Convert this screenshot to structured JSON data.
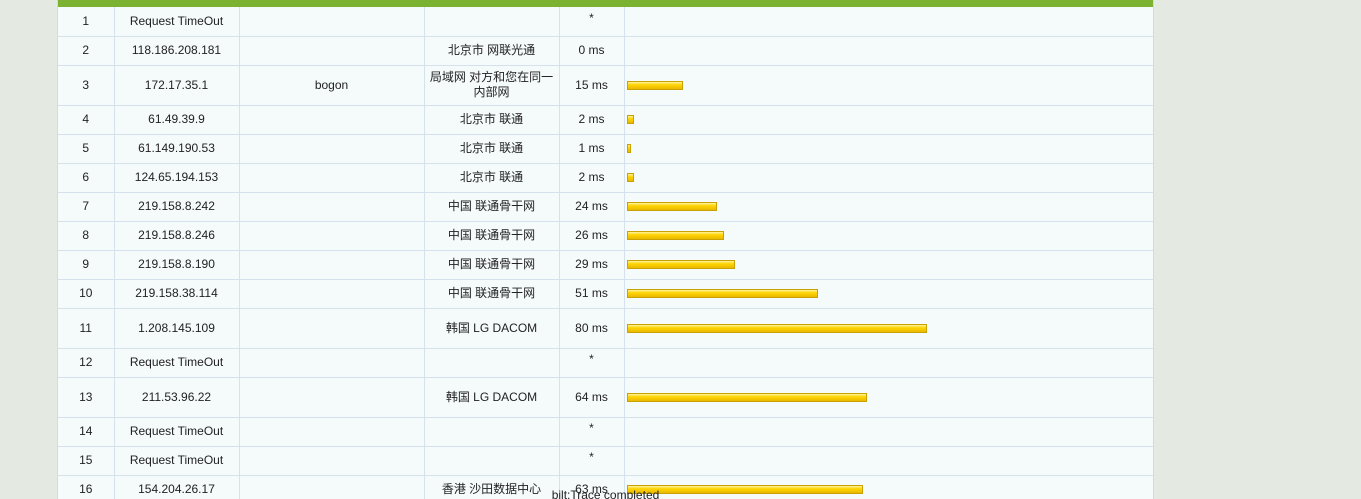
{
  "rows": [
    {
      "hop": "1",
      "ip": "Request TimeOut",
      "host": "",
      "loc": "",
      "time": "*",
      "ms": 0
    },
    {
      "hop": "2",
      "ip": "118.186.208.181",
      "host": "",
      "loc": "北京市 网联光通",
      "time": "0 ms",
      "ms": 0
    },
    {
      "hop": "3",
      "ip": "172.17.35.1",
      "host": "bogon",
      "loc": "局域网 对方和您在同一内部网",
      "time": "15 ms",
      "ms": 15
    },
    {
      "hop": "4",
      "ip": "61.49.39.9",
      "host": "",
      "loc": "北京市 联通",
      "time": "2 ms",
      "ms": 2
    },
    {
      "hop": "5",
      "ip": "61.149.190.53",
      "host": "",
      "loc": "北京市 联通",
      "time": "1 ms",
      "ms": 1
    },
    {
      "hop": "6",
      "ip": "124.65.194.153",
      "host": "",
      "loc": "北京市 联通",
      "time": "2 ms",
      "ms": 2
    },
    {
      "hop": "7",
      "ip": "219.158.8.242",
      "host": "",
      "loc": "中国 联通骨干网",
      "time": "24 ms",
      "ms": 24
    },
    {
      "hop": "8",
      "ip": "219.158.8.246",
      "host": "",
      "loc": "中国 联通骨干网",
      "time": "26 ms",
      "ms": 26
    },
    {
      "hop": "9",
      "ip": "219.158.8.190",
      "host": "",
      "loc": "中国 联通骨干网",
      "time": "29 ms",
      "ms": 29
    },
    {
      "hop": "10",
      "ip": "219.158.38.114",
      "host": "",
      "loc": "中国 联通骨干网",
      "time": "51 ms",
      "ms": 51
    },
    {
      "hop": "11",
      "ip": "1.208.145.109",
      "host": "",
      "loc": "韩国 LG DACOM",
      "time": "80 ms",
      "ms": 80
    },
    {
      "hop": "12",
      "ip": "Request TimeOut",
      "host": "",
      "loc": "",
      "time": "*",
      "ms": 0
    },
    {
      "hop": "13",
      "ip": "211.53.96.22",
      "host": "",
      "loc": "韩国 LG DACOM",
      "time": "64 ms",
      "ms": 64
    },
    {
      "hop": "14",
      "ip": "Request TimeOut",
      "host": "",
      "loc": "",
      "time": "*",
      "ms": 0
    },
    {
      "hop": "15",
      "ip": "Request TimeOut",
      "host": "",
      "loc": "",
      "time": "*",
      "ms": 0
    },
    {
      "hop": "16",
      "ip": "154.204.26.17",
      "host": "",
      "loc": "香港 沙田数据中心",
      "time": "63 ms",
      "ms": 63
    }
  ],
  "footer": {
    "text": "bilt:Trace completed"
  },
  "colors": {
    "accent": "#7bb232",
    "bar": "#ffd400"
  }
}
